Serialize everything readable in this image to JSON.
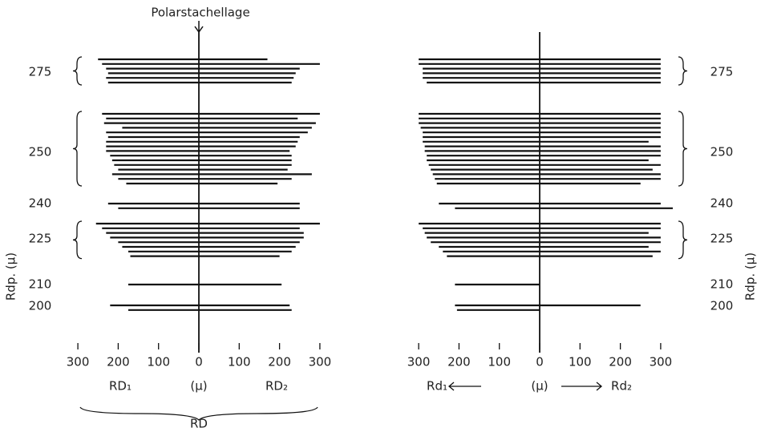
{
  "title": "Polarstachellage",
  "y_axis_label": "Rdp. (µ)",
  "panels": [
    {
      "x_ticks": [
        {
          "value": -300,
          "label": "300"
        },
        {
          "value": -200,
          "label": "200"
        },
        {
          "value": -100,
          "label": "100"
        },
        0,
        100,
        200,
        300
      ],
      "left_label": "RD₁",
      "unit_label": "(µ)",
      "right_label": "RD₂",
      "under_label": "RD",
      "groups": [
        {
          "label": "275",
          "rows": [
            [
              250,
              170
            ],
            [
              240,
              300
            ],
            [
              230,
              250
            ],
            [
              225,
              240
            ],
            [
              230,
              235
            ],
            [
              225,
              230
            ]
          ]
        },
        {
          "label": "250",
          "rows": [
            [
              240,
              300
            ],
            [
              230,
              245
            ],
            [
              235,
              290
            ],
            [
              190,
              280
            ],
            [
              230,
              270
            ],
            [
              225,
              250
            ],
            [
              230,
              245
            ],
            [
              230,
              240
            ],
            [
              230,
              225
            ],
            [
              220,
              230
            ],
            [
              215,
              230
            ],
            [
              210,
              230
            ],
            [
              200,
              220
            ],
            [
              215,
              280
            ],
            [
              200,
              230
            ],
            [
              180,
              195
            ]
          ]
        },
        {
          "label": "240",
          "rows": [
            [
              225,
              250
            ],
            [
              200,
              250
            ]
          ]
        },
        {
          "label": "225",
          "rows": [
            [
              255,
              300
            ],
            [
              240,
              250
            ],
            [
              230,
              260
            ],
            [
              220,
              260
            ],
            [
              200,
              250
            ],
            [
              190,
              240
            ],
            [
              175,
              230
            ],
            [
              170,
              200
            ]
          ]
        },
        {
          "label": "210",
          "rows": [
            [
              175,
              205
            ]
          ]
        },
        {
          "label": "200",
          "rows": [
            [
              220,
              225
            ],
            [
              175,
              230
            ]
          ]
        }
      ]
    },
    {
      "x_ticks": [
        {
          "value": -300,
          "label": "300"
        },
        {
          "value": -200,
          "label": "200"
        },
        {
          "value": -100,
          "label": "100"
        },
        0,
        100,
        200,
        300
      ],
      "left_label": "Rd₁",
      "unit_label": "(µ)",
      "right_label": "Rd₂",
      "groups": [
        {
          "label": "275",
          "rows": [
            [
              300,
              300
            ],
            [
              300,
              300
            ],
            [
              290,
              300
            ],
            [
              290,
              300
            ],
            [
              290,
              300
            ],
            [
              280,
              300
            ]
          ]
        },
        {
          "label": "250",
          "rows": [
            [
              300,
              300
            ],
            [
              300,
              300
            ],
            [
              300,
              300
            ],
            [
              295,
              300
            ],
            [
              290,
              300
            ],
            [
              290,
              300
            ],
            [
              290,
              270
            ],
            [
              285,
              300
            ],
            [
              285,
              300
            ],
            [
              280,
              300
            ],
            [
              280,
              270
            ],
            [
              275,
              300
            ],
            [
              270,
              280
            ],
            [
              265,
              300
            ],
            [
              260,
              300
            ],
            [
              255,
              250
            ]
          ]
        },
        {
          "label": "240",
          "rows": [
            [
              250,
              300
            ],
            [
              210,
              330
            ]
          ]
        },
        {
          "label": "225",
          "rows": [
            [
              300,
              300
            ],
            [
              290,
              300
            ],
            [
              285,
              270
            ],
            [
              280,
              300
            ],
            [
              270,
              300
            ],
            [
              250,
              270
            ],
            [
              240,
              300
            ],
            [
              230,
              280
            ]
          ]
        },
        {
          "label": "210",
          "rows": [
            [
              210,
              0
            ]
          ]
        },
        {
          "label": "200",
          "rows": [
            [
              210,
              250
            ],
            [
              205,
              0
            ]
          ]
        }
      ]
    }
  ]
}
